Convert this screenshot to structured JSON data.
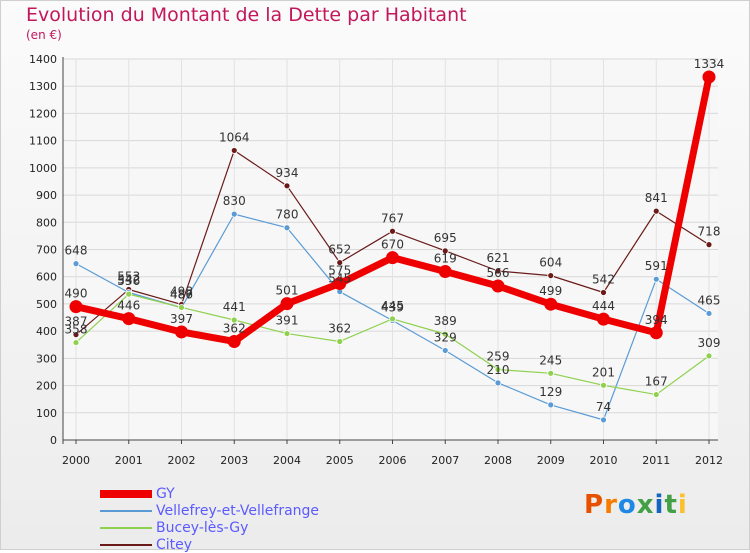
{
  "title": "Evolution du Montant de la Dette par Habitant",
  "subtitle": "(en €)",
  "logo": {
    "text": "Proxiti",
    "colors": [
      "#e65100",
      "#f57c00",
      "#1e88e5",
      "#43a047",
      "#1565c0",
      "#43a047",
      "#fbc02d"
    ]
  },
  "chart_data": {
    "type": "line",
    "categories": [
      "2000",
      "2001",
      "2002",
      "2003",
      "2004",
      "2005",
      "2006",
      "2007",
      "2008",
      "2009",
      "2010",
      "2011",
      "2012"
    ],
    "yticks": [
      0,
      100,
      200,
      300,
      400,
      500,
      600,
      700,
      800,
      900,
      1000,
      1100,
      1200,
      1300,
      1400
    ],
    "ylim": [
      0,
      1400
    ],
    "grid": true,
    "legend_position": "bottom-left",
    "series": [
      {
        "name": "Citey",
        "color": "#6b1a1a",
        "values": [
          387,
          553,
          498,
          1064,
          934,
          652,
          767,
          695,
          621,
          604,
          542,
          841,
          718
        ]
      },
      {
        "name": "Vellefrey-et-Vellefrange",
        "color": "#5b9bd5",
        "values": [
          648,
          542,
          486,
          830,
          780,
          545,
          439,
          329,
          210,
          129,
          74,
          591,
          465
        ]
      },
      {
        "name": "Bucey-lès-Gy",
        "color": "#8fd14f",
        "values": [
          358,
          536,
          487,
          441,
          391,
          362,
          445,
          389,
          259,
          245,
          201,
          167,
          309
        ]
      },
      {
        "name": "GY",
        "color": "#ee0000",
        "values": [
          490,
          446,
          397,
          362,
          501,
          575,
          670,
          619,
          566,
          499,
          444,
          394,
          1334
        ]
      }
    ],
    "legend": [
      "GY",
      "Vellefrey-et-Vellefrange",
      "Bucey-lès-Gy",
      "Citey"
    ]
  }
}
